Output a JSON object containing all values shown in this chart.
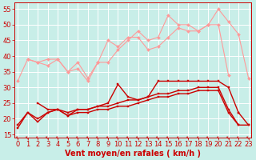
{
  "x": [
    0,
    1,
    2,
    3,
    4,
    5,
    6,
    7,
    8,
    9,
    10,
    11,
    12,
    13,
    14,
    15,
    16,
    17,
    18,
    19,
    20,
    21,
    22,
    23
  ],
  "series": [
    {
      "name": "pink_line1",
      "color": "#FF9999",
      "linewidth": 0.8,
      "marker": "D",
      "markersize": 2.0,
      "y": [
        null,
        39,
        38,
        39,
        39,
        35,
        38,
        33,
        38,
        45,
        43,
        46,
        46,
        42,
        43,
        46,
        49,
        48,
        48,
        50,
        50,
        34,
        null,
        null
      ]
    },
    {
      "name": "pink_line2",
      "color": "#FF9999",
      "linewidth": 0.8,
      "marker": "D",
      "markersize": 2.0,
      "y": [
        32,
        39,
        38,
        37,
        39,
        35,
        36,
        32,
        38,
        38,
        42,
        45,
        48,
        45,
        46,
        53,
        50,
        50,
        48,
        50,
        55,
        51,
        47,
        33
      ]
    },
    {
      "name": "dark_red_top",
      "color": "#CC0000",
      "linewidth": 1.0,
      "marker": "s",
      "markersize": 2.0,
      "y": [
        null,
        null,
        25,
        23,
        23,
        21,
        23,
        23,
        24,
        25,
        31,
        27,
        26,
        27,
        32,
        32,
        32,
        32,
        32,
        32,
        32,
        30,
        22,
        null
      ]
    },
    {
      "name": "dark_red_mid1",
      "color": "#CC0000",
      "linewidth": 1.0,
      "marker": "s",
      "markersize": 2.0,
      "y": [
        18,
        22,
        19,
        22,
        23,
        22,
        23,
        23,
        24,
        24,
        25,
        26,
        26,
        27,
        28,
        28,
        29,
        29,
        30,
        30,
        30,
        23,
        18,
        null
      ]
    },
    {
      "name": "dark_red_mid2",
      "color": "#CC0000",
      "linewidth": 1.0,
      "marker": "s",
      "markersize": 2.0,
      "y": [
        17,
        22,
        20,
        22,
        23,
        21,
        22,
        22,
        23,
        23,
        24,
        24,
        25,
        26,
        27,
        27,
        28,
        28,
        29,
        29,
        29,
        22,
        18,
        18
      ]
    },
    {
      "name": "dark_red_bot",
      "color": "#CC0000",
      "linewidth": 1.0,
      "marker": "s",
      "markersize": 2.0,
      "y": [
        null,
        null,
        null,
        null,
        null,
        null,
        null,
        null,
        null,
        null,
        null,
        null,
        null,
        null,
        null,
        null,
        null,
        null,
        null,
        null,
        null,
        null,
        22,
        18
      ]
    }
  ],
  "xlabel": "Vent moyen/en rafales ( km/h )",
  "xlim": [
    -0.3,
    23.3
  ],
  "ylim": [
    14,
    57
  ],
  "yticks": [
    15,
    20,
    25,
    30,
    35,
    40,
    45,
    50,
    55
  ],
  "xticks": [
    0,
    1,
    2,
    3,
    4,
    5,
    6,
    7,
    8,
    9,
    10,
    11,
    12,
    13,
    14,
    15,
    16,
    17,
    18,
    19,
    20,
    21,
    22,
    23
  ],
  "bg_color": "#C8EEE8",
  "grid_color": "#FFFFFF",
  "text_color": "#CC0000",
  "xlabel_fontsize": 7,
  "tick_fontsize": 6
}
